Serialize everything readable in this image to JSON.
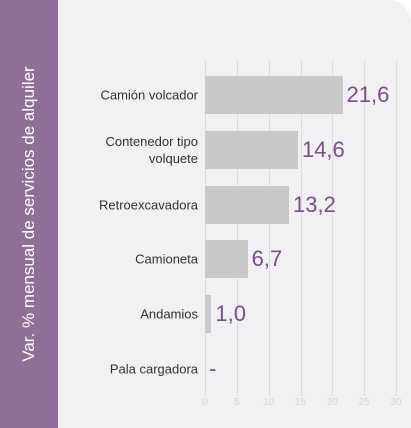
{
  "chart_data": {
    "type": "barh",
    "y_axis_label": "Var. % mensual de servicios de alquiler",
    "categories": [
      "Camión volcador",
      "Contenedor tipo volquete",
      "Retroexcavadora",
      "Camioneta",
      "Andamios",
      "Pala cargadora"
    ],
    "values": [
      21.6,
      14.6,
      13.2,
      6.7,
      1.0,
      null
    ],
    "value_labels": [
      "21,6",
      "14,6",
      "13,2",
      "6,7",
      "1,0",
      "-"
    ],
    "color": "#c8c8c8",
    "xlim": [
      0,
      30
    ],
    "xticks": [
      0,
      5,
      10,
      15,
      20,
      25,
      30
    ],
    "grid": true
  }
}
